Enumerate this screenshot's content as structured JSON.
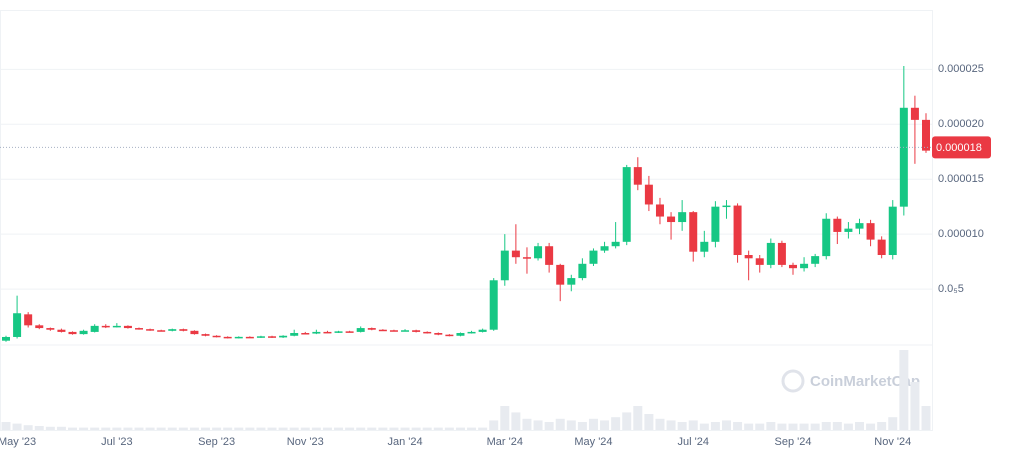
{
  "chart_data": {
    "type": "candlestick",
    "categories": [
      null,
      "May '23",
      null,
      null,
      null,
      null,
      null,
      null,
      null,
      null,
      "Jul '23",
      null,
      null,
      null,
      null,
      null,
      null,
      null,
      null,
      "Sep '23",
      null,
      null,
      null,
      null,
      null,
      null,
      null,
      "Nov '23",
      null,
      null,
      null,
      null,
      null,
      null,
      null,
      null,
      "Jan '24",
      null,
      null,
      null,
      null,
      null,
      null,
      null,
      null,
      "Mar '24",
      null,
      null,
      null,
      null,
      null,
      null,
      null,
      "May '24",
      null,
      null,
      null,
      null,
      null,
      null,
      null,
      null,
      "Jul '24",
      null,
      null,
      null,
      null,
      null,
      null,
      null,
      null,
      "Sep '24",
      null,
      null,
      null,
      null,
      null,
      null,
      null,
      null,
      "Nov '24",
      null,
      null,
      null
    ],
    "open": [
      3e-07,
      6.4e-07,
      2.7e-06,
      1.7e-06,
      1.45e-06,
      1.3e-06,
      1.1e-06,
      9e-07,
      1.1e-06,
      1.65e-06,
      1.55e-06,
      1.65e-06,
      1.45e-06,
      1.35e-06,
      1.25e-06,
      1.2e-06,
      1.35e-06,
      1.2e-06,
      9e-07,
      7.5e-07,
      6.5e-07,
      5.5e-07,
      6.5e-07,
      6e-07,
      7e-07,
      6e-07,
      7.5e-07,
      1e-06,
      9.5e-07,
      1.1e-06,
      1.05e-06,
      1.15e-06,
      1.1e-06,
      1.45e-06,
      1.3e-06,
      1.25e-06,
      1.2e-06,
      1.25e-06,
      1.1e-06,
      1e-06,
      8.5e-07,
      7.5e-07,
      1e-06,
      1.1e-06,
      1.3e-06,
      5.8e-06,
      8.5e-06,
      7.9e-06,
      7.8e-06,
      8.9e-06,
      7.2e-06,
      5.4e-06,
      6e-06,
      7.3e-06,
      8.5e-06,
      8.9e-06,
      9.3e-06,
      1.61e-05,
      1.45e-05,
      1.27e-05,
      1.16e-05,
      1.11e-05,
      1.2e-05,
      8.4e-06,
      9.3e-06,
      1.25e-05,
      1.26e-05,
      8.1e-06,
      7.8e-06,
      7.2e-06,
      9.2e-06,
      7.2e-06,
      6.9e-06,
      7.3e-06,
      8e-06,
      1.14e-05,
      1.02e-05,
      1.05e-05,
      1.1e-05,
      9.5e-06,
      8.1e-06,
      1.25e-05,
      2.15e-05,
      2.04e-05
    ],
    "high": [
      7.5e-07,
      4.4e-06,
      2.9e-06,
      1.8e-06,
      1.5e-06,
      1.4e-06,
      1.15e-06,
      1.3e-06,
      1.8e-06,
      1.8e-06,
      1.9e-06,
      1.7e-06,
      1.5e-06,
      1.4e-06,
      1.3e-06,
      1.4e-06,
      1.4e-06,
      1.25e-06,
      9.5e-07,
      8e-07,
      7e-07,
      7e-07,
      7e-07,
      7.5e-07,
      7.5e-07,
      8e-07,
      1.3e-06,
      1.1e-06,
      1.3e-06,
      1.2e-06,
      1.2e-06,
      1.2e-06,
      1.6e-06,
      1.5e-06,
      1.35e-06,
      1.3e-06,
      1.35e-06,
      1.3e-06,
      1.15e-06,
      1.05e-06,
      9e-07,
      1.05e-06,
      1.2e-06,
      1.4e-06,
      6e-06,
      1e-05,
      1.09e-05,
      8.8e-06,
      9.2e-06,
      9.2e-06,
      7.3e-06,
      6.3e-06,
      7.8e-06,
      8.7e-06,
      9.3e-06,
      1.11e-05,
      1.63e-05,
      1.7e-05,
      1.53e-05,
      1.33e-05,
      1.2e-05,
      1.31e-05,
      1.21e-05,
      1.03e-05,
      1.3e-05,
      1.31e-05,
      1.28e-05,
      8.5e-06,
      8.1e-06,
      9.6e-06,
      9.4e-06,
      7.4e-06,
      7.9e-06,
      8.2e-06,
      1.19e-05,
      1.16e-05,
      1.11e-05,
      1.14e-05,
      1.13e-05,
      9.8e-06,
      1.31e-05,
      2.53e-05,
      2.26e-05,
      2.1e-05
    ],
    "low": [
      2e-07,
      5e-07,
      1.5e-06,
      1.35e-06,
      1.2e-06,
      1.05e-06,
      8.5e-07,
      8.5e-07,
      1.05e-06,
      1.45e-06,
      1.5e-06,
      1.4e-06,
      1.3e-06,
      1.2e-06,
      1.15e-06,
      1.15e-06,
      1.15e-06,
      8.5e-07,
      7e-07,
      6e-07,
      5e-07,
      5e-07,
      5.5e-07,
      5.5e-07,
      5.5e-07,
      5.5e-07,
      7e-07,
      9e-07,
      9e-07,
      1e-06,
      1e-06,
      1.05e-06,
      1.05e-06,
      1.25e-06,
      1.2e-06,
      1.15e-06,
      1.15e-06,
      1.05e-06,
      9.5e-07,
      8e-07,
      7e-07,
      7e-07,
      9.5e-07,
      1.05e-06,
      1.2e-06,
      5.3e-06,
      7.3e-06,
      6.4e-06,
      7.6e-06,
      6.5e-06,
      3.9e-06,
      4.8e-06,
      5.8e-06,
      7.1e-06,
      8.3e-06,
      8.7e-06,
      9e-06,
      1.4e-05,
      1.21e-05,
      1.09e-05,
      9.5e-06,
      1.03e-05,
      7.5e-06,
      7.9e-06,
      8.8e-06,
      1.14e-05,
      7.4e-06,
      5.8e-06,
      6.5e-06,
      6.9e-06,
      7e-06,
      6.3e-06,
      6.6e-06,
      7e-06,
      7.7e-06,
      9.1e-06,
      9.6e-06,
      1e-05,
      8.9e-06,
      7.8e-06,
      7.7e-06,
      1.17e-05,
      1.64e-05,
      1.74e-05
    ],
    "close": [
      6.4e-07,
      2.8e-06,
      1.7e-06,
      1.45e-06,
      1.3e-06,
      1.1e-06,
      9e-07,
      1.2e-06,
      1.65e-06,
      1.55e-06,
      1.65e-06,
      1.45e-06,
      1.35e-06,
      1.25e-06,
      1.2e-06,
      1.35e-06,
      1.2e-06,
      9e-07,
      7.5e-07,
      6.5e-07,
      5.5e-07,
      6.5e-07,
      6e-07,
      7e-07,
      6e-07,
      7.5e-07,
      1e-06,
      9.5e-07,
      1.1e-06,
      1.05e-06,
      1.15e-06,
      1.1e-06,
      1.45e-06,
      1.3e-06,
      1.25e-06,
      1.2e-06,
      1.25e-06,
      1.1e-06,
      1e-06,
      8.5e-07,
      7.5e-07,
      1e-06,
      1.1e-06,
      1.3e-06,
      5.8e-06,
      8.5e-06,
      7.9e-06,
      7.8e-06,
      8.9e-06,
      7.2e-06,
      5.4e-06,
      6e-06,
      7.3e-06,
      8.5e-06,
      8.9e-06,
      9.3e-06,
      1.61e-05,
      1.45e-05,
      1.27e-05,
      1.16e-05,
      1.11e-05,
      1.2e-05,
      8.4e-06,
      9.3e-06,
      1.25e-05,
      1.26e-05,
      8.1e-06,
      7.8e-06,
      7.2e-06,
      9.2e-06,
      7.2e-06,
      6.9e-06,
      7.3e-06,
      8e-06,
      1.14e-05,
      1.02e-05,
      1.05e-05,
      1.1e-05,
      9.5e-06,
      8.1e-06,
      1.25e-05,
      2.15e-05,
      2.04e-05,
      1.76e-05
    ],
    "volume": [
      10,
      8,
      6,
      5,
      4,
      4,
      3,
      3,
      3,
      3,
      3,
      3,
      3,
      3,
      3,
      3,
      3,
      3,
      3,
      3,
      3,
      3,
      3,
      3,
      3,
      3,
      3,
      3,
      3,
      3,
      3,
      3,
      3,
      3,
      3,
      3,
      3,
      3,
      3,
      3,
      3,
      3,
      3,
      3,
      12,
      30,
      22,
      14,
      12,
      10,
      14,
      12,
      10,
      14,
      12,
      16,
      22,
      30,
      20,
      14,
      12,
      10,
      12,
      8,
      10,
      12,
      10,
      8,
      8,
      10,
      8,
      8,
      8,
      8,
      10,
      10,
      8,
      10,
      8,
      10,
      16,
      100,
      60,
      30
    ],
    "volume_lim": [
      0,
      100
    ],
    "up_color": "#16c784",
    "down_color": "#ea3943",
    "ylim": [
      0,
      3.04e-05
    ],
    "yticks": [
      {
        "value": 5e-06,
        "label": "0.0₅5"
      },
      {
        "value": 1e-05,
        "label": "0.000010"
      },
      1.5e-05,
      {
        "value": 2e-05,
        "label": "0.000020"
      },
      2.5e-05
    ],
    "grid": true,
    "last_price": {
      "value": 1.79e-05,
      "label": "0.000018"
    },
    "watermark": "CoinMarketCap"
  }
}
